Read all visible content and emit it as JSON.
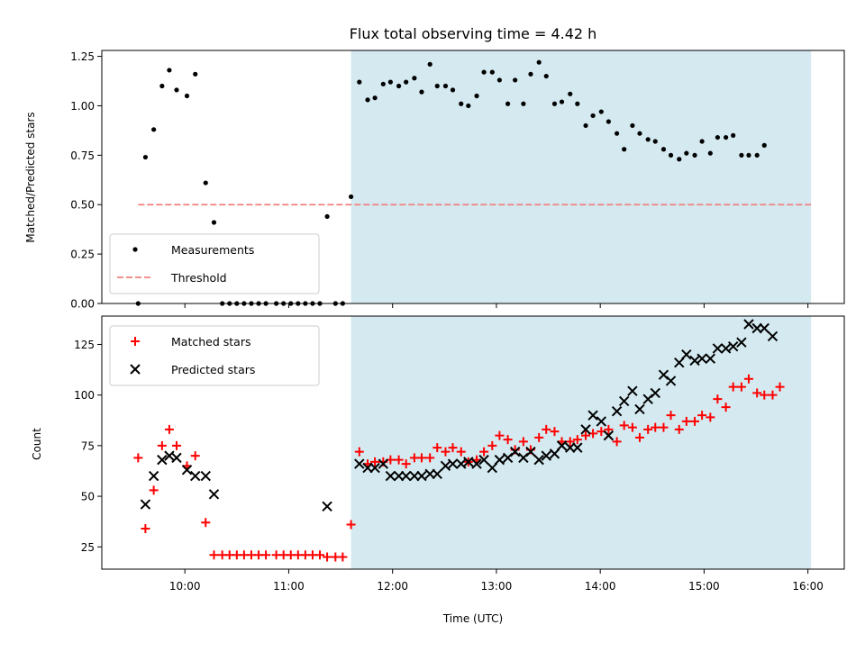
{
  "chart_data": [
    {
      "type": "scatter",
      "title": "Flux total observing time = 4.42 h",
      "xlabel": "",
      "ylabel": "Matched/Predicted stars",
      "x_unit": "hours UTC",
      "xlim": [
        9.2,
        16.35
      ],
      "ylim": [
        0,
        1.28
      ],
      "yticks": [
        "0.00",
        "0.25",
        "0.50",
        "0.75",
        "1.00",
        "1.25"
      ],
      "ytick_values": [
        0,
        0.25,
        0.5,
        0.75,
        1.0,
        1.25
      ],
      "observing_window": {
        "start": 11.6,
        "end": 16.03,
        "color": "#d4eaf0"
      },
      "legend": {
        "placement": "lower-left",
        "entries": [
          "Measurements",
          "Threshold"
        ]
      },
      "threshold": {
        "name": "Threshold",
        "value": 0.5,
        "x_range": [
          9.55,
          16.03
        ],
        "color": "#f08080",
        "style": "dashed"
      },
      "series": [
        {
          "name": "Measurements",
          "marker": "dot",
          "color": "#000000",
          "points": [
            [
              9.55,
              0.0
            ],
            [
              9.62,
              0.74
            ],
            [
              9.7,
              0.88
            ],
            [
              9.78,
              1.1
            ],
            [
              9.85,
              1.18
            ],
            [
              9.92,
              1.08
            ],
            [
              10.02,
              1.05
            ],
            [
              10.1,
              1.16
            ],
            [
              10.2,
              0.61
            ],
            [
              10.28,
              0.41
            ],
            [
              10.36,
              0.0
            ],
            [
              10.43,
              0.0
            ],
            [
              10.5,
              0.0
            ],
            [
              10.57,
              0.0
            ],
            [
              10.64,
              0.0
            ],
            [
              10.71,
              0.0
            ],
            [
              10.78,
              0.0
            ],
            [
              10.88,
              0.0
            ],
            [
              10.95,
              0.0
            ],
            [
              11.02,
              0.0
            ],
            [
              11.09,
              0.0
            ],
            [
              11.16,
              0.0
            ],
            [
              11.23,
              0.0
            ],
            [
              11.3,
              0.0
            ],
            [
              11.37,
              0.44
            ],
            [
              11.45,
              0.0
            ],
            [
              11.52,
              0.0
            ],
            [
              11.6,
              0.54
            ],
            [
              11.68,
              1.12
            ],
            [
              11.76,
              1.03
            ],
            [
              11.83,
              1.04
            ],
            [
              11.91,
              1.11
            ],
            [
              11.98,
              1.12
            ],
            [
              12.06,
              1.1
            ],
            [
              12.13,
              1.12
            ],
            [
              12.21,
              1.14
            ],
            [
              12.28,
              1.07
            ],
            [
              12.36,
              1.21
            ],
            [
              12.43,
              1.1
            ],
            [
              12.51,
              1.1
            ],
            [
              12.58,
              1.08
            ],
            [
              12.66,
              1.01
            ],
            [
              12.73,
              1.0
            ],
            [
              12.81,
              1.05
            ],
            [
              12.88,
              1.17
            ],
            [
              12.96,
              1.17
            ],
            [
              13.03,
              1.13
            ],
            [
              13.11,
              1.01
            ],
            [
              13.18,
              1.13
            ],
            [
              13.26,
              1.01
            ],
            [
              13.33,
              1.16
            ],
            [
              13.41,
              1.22
            ],
            [
              13.48,
              1.15
            ],
            [
              13.56,
              1.01
            ],
            [
              13.63,
              1.02
            ],
            [
              13.71,
              1.06
            ],
            [
              13.78,
              1.01
            ],
            [
              13.86,
              0.9
            ],
            [
              13.93,
              0.95
            ],
            [
              14.01,
              0.97
            ],
            [
              14.08,
              0.92
            ],
            [
              14.16,
              0.86
            ],
            [
              14.23,
              0.78
            ],
            [
              14.31,
              0.9
            ],
            [
              14.38,
              0.86
            ],
            [
              14.46,
              0.83
            ],
            [
              14.53,
              0.82
            ],
            [
              14.61,
              0.78
            ],
            [
              14.68,
              0.75
            ],
            [
              14.76,
              0.73
            ],
            [
              14.83,
              0.76
            ],
            [
              14.91,
              0.75
            ],
            [
              14.98,
              0.82
            ],
            [
              15.06,
              0.76
            ],
            [
              15.13,
              0.84
            ],
            [
              15.21,
              0.84
            ],
            [
              15.28,
              0.85
            ],
            [
              15.36,
              0.75
            ],
            [
              15.43,
              0.75
            ],
            [
              15.51,
              0.75
            ],
            [
              15.58,
              0.8
            ]
          ]
        }
      ]
    },
    {
      "type": "scatter",
      "title": "",
      "xlabel": "Time (UTC)",
      "ylabel": "Count",
      "x_unit": "hours UTC",
      "xlim": [
        9.2,
        16.35
      ],
      "ylim": [
        14,
        139
      ],
      "xticks": [
        "10:00",
        "11:00",
        "12:00",
        "13:00",
        "14:00",
        "15:00",
        "16:00"
      ],
      "xtick_values": [
        10,
        11,
        12,
        13,
        14,
        15,
        16
      ],
      "yticks": [
        "25",
        "50",
        "75",
        "100",
        "125"
      ],
      "ytick_values": [
        25,
        50,
        75,
        100,
        125
      ],
      "observing_window": {
        "start": 11.6,
        "end": 16.03,
        "color": "#d4eaf0"
      },
      "legend": {
        "placement": "upper-left",
        "entries": [
          "Matched stars",
          "Predicted stars"
        ]
      },
      "series": [
        {
          "name": "Matched stars",
          "marker": "plus",
          "color": "#ff0000",
          "points": [
            [
              9.55,
              69
            ],
            [
              9.62,
              34
            ],
            [
              9.7,
              53
            ],
            [
              9.78,
              75
            ],
            [
              9.85,
              83
            ],
            [
              9.92,
              75
            ],
            [
              10.02,
              65
            ],
            [
              10.1,
              70
            ],
            [
              10.2,
              37
            ],
            [
              10.28,
              21
            ],
            [
              10.36,
              21
            ],
            [
              10.43,
              21
            ],
            [
              10.5,
              21
            ],
            [
              10.57,
              21
            ],
            [
              10.64,
              21
            ],
            [
              10.71,
              21
            ],
            [
              10.78,
              21
            ],
            [
              10.88,
              21
            ],
            [
              10.95,
              21
            ],
            [
              11.02,
              21
            ],
            [
              11.09,
              21
            ],
            [
              11.16,
              21
            ],
            [
              11.23,
              21
            ],
            [
              11.3,
              21
            ],
            [
              11.37,
              20
            ],
            [
              11.45,
              20
            ],
            [
              11.52,
              20
            ],
            [
              11.6,
              36
            ],
            [
              11.68,
              72
            ],
            [
              11.76,
              66
            ],
            [
              11.83,
              67
            ],
            [
              11.91,
              67
            ],
            [
              11.98,
              68
            ],
            [
              12.06,
              68
            ],
            [
              12.13,
              66
            ],
            [
              12.21,
              69
            ],
            [
              12.28,
              69
            ],
            [
              12.36,
              69
            ],
            [
              12.43,
              74
            ],
            [
              12.51,
              72
            ],
            [
              12.58,
              74
            ],
            [
              12.66,
              72
            ],
            [
              12.73,
              67
            ],
            [
              12.81,
              68
            ],
            [
              12.88,
              72
            ],
            [
              12.96,
              75
            ],
            [
              13.03,
              80
            ],
            [
              13.11,
              78
            ],
            [
              13.18,
              73
            ],
            [
              13.26,
              77
            ],
            [
              13.33,
              73
            ],
            [
              13.41,
              79
            ],
            [
              13.48,
              83
            ],
            [
              13.56,
              82
            ],
            [
              13.63,
              77
            ],
            [
              13.71,
              77
            ],
            [
              13.78,
              78
            ],
            [
              13.86,
              80
            ],
            [
              13.93,
              81
            ],
            [
              14.01,
              82
            ],
            [
              14.08,
              83
            ],
            [
              14.16,
              77
            ],
            [
              14.23,
              85
            ],
            [
              14.31,
              84
            ],
            [
              14.38,
              79
            ],
            [
              14.46,
              83
            ],
            [
              14.53,
              84
            ],
            [
              14.61,
              84
            ],
            [
              14.68,
              90
            ],
            [
              14.76,
              83
            ],
            [
              14.83,
              87
            ],
            [
              14.91,
              87
            ],
            [
              14.98,
              90
            ],
            [
              15.06,
              89
            ],
            [
              15.13,
              98
            ],
            [
              15.21,
              94
            ],
            [
              15.28,
              104
            ],
            [
              15.36,
              104
            ],
            [
              15.43,
              108
            ],
            [
              15.51,
              101
            ],
            [
              15.58,
              100
            ],
            [
              15.66,
              100
            ],
            [
              15.73,
              104
            ]
          ]
        },
        {
          "name": "Predicted stars",
          "marker": "x",
          "color": "#000000",
          "points": [
            [
              9.62,
              46
            ],
            [
              9.7,
              60
            ],
            [
              9.78,
              68
            ],
            [
              9.85,
              70
            ],
            [
              9.92,
              69
            ],
            [
              10.02,
              63
            ],
            [
              10.1,
              60
            ],
            [
              10.2,
              60
            ],
            [
              10.28,
              51
            ],
            [
              11.37,
              45
            ],
            [
              11.68,
              66
            ],
            [
              11.76,
              64
            ],
            [
              11.83,
              64
            ],
            [
              11.91,
              66
            ],
            [
              11.98,
              60
            ],
            [
              12.06,
              60
            ],
            [
              12.13,
              60
            ],
            [
              12.21,
              60
            ],
            [
              12.28,
              60
            ],
            [
              12.36,
              61
            ],
            [
              12.43,
              61
            ],
            [
              12.51,
              65
            ],
            [
              12.58,
              66
            ],
            [
              12.66,
              66
            ],
            [
              12.73,
              67
            ],
            [
              12.81,
              66
            ],
            [
              12.88,
              68
            ],
            [
              12.96,
              64
            ],
            [
              13.03,
              68
            ],
            [
              13.11,
              69
            ],
            [
              13.18,
              72
            ],
            [
              13.26,
              69
            ],
            [
              13.33,
              72
            ],
            [
              13.41,
              68
            ],
            [
              13.48,
              70
            ],
            [
              13.56,
              71
            ],
            [
              13.63,
              75
            ],
            [
              13.71,
              74
            ],
            [
              13.78,
              74
            ],
            [
              13.86,
              83
            ],
            [
              13.93,
              90
            ],
            [
              14.01,
              87
            ],
            [
              14.08,
              80
            ],
            [
              14.16,
              92
            ],
            [
              14.23,
              97
            ],
            [
              14.31,
              102
            ],
            [
              14.38,
              93
            ],
            [
              14.46,
              98
            ],
            [
              14.53,
              101
            ],
            [
              14.61,
              110
            ],
            [
              14.68,
              107
            ],
            [
              14.76,
              116
            ],
            [
              14.83,
              120
            ],
            [
              14.91,
              117
            ],
            [
              14.98,
              118
            ],
            [
              15.06,
              118
            ],
            [
              15.13,
              123
            ],
            [
              15.21,
              123
            ],
            [
              15.28,
              124
            ],
            [
              15.36,
              126
            ],
            [
              15.43,
              135
            ],
            [
              15.51,
              133
            ],
            [
              15.58,
              133
            ],
            [
              15.66,
              129
            ]
          ]
        }
      ]
    }
  ]
}
